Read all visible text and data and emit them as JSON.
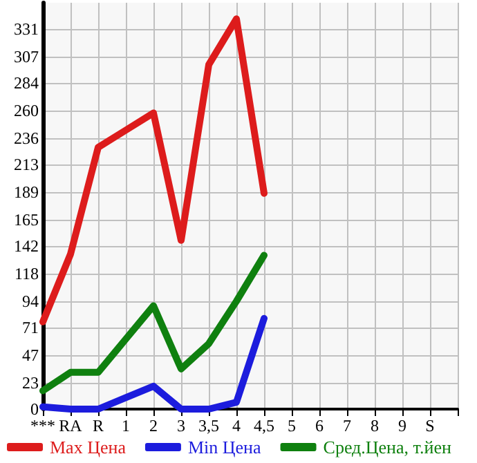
{
  "chart_data": {
    "type": "line",
    "categories": [
      "***",
      "RA",
      "R",
      "1",
      "2",
      "3",
      "3,5",
      "4",
      "4,5",
      "5",
      "6",
      "7",
      "8",
      "9",
      "S",
      null
    ],
    "series": [
      {
        "name": "Max Цена",
        "color": "#dd1c1c",
        "values": [
          76,
          135,
          228,
          243,
          258,
          147,
          300,
          340,
          188,
          null,
          null,
          null,
          null,
          null,
          null,
          null
        ]
      },
      {
        "name": "Min Цена",
        "color": "#1c1cdd",
        "values": [
          2,
          0,
          0,
          10,
          20,
          0,
          0,
          6,
          79,
          null,
          null,
          null,
          null,
          null,
          null,
          null
        ]
      },
      {
        "name": "Сред.Цена, т.йен",
        "color": "#0f800f",
        "values": [
          16,
          32,
          32,
          61,
          90,
          35,
          57,
          94,
          134,
          null,
          null,
          null,
          null,
          null,
          null,
          null
        ]
      }
    ],
    "ylim": [
      0,
      354
    ],
    "yticks": [
      0,
      23,
      47,
      71,
      94,
      118,
      142,
      165,
      189,
      213,
      236,
      260,
      284,
      307,
      331
    ],
    "grid": true,
    "legend": "bottom",
    "marker": "none",
    "line_style": "solid"
  }
}
